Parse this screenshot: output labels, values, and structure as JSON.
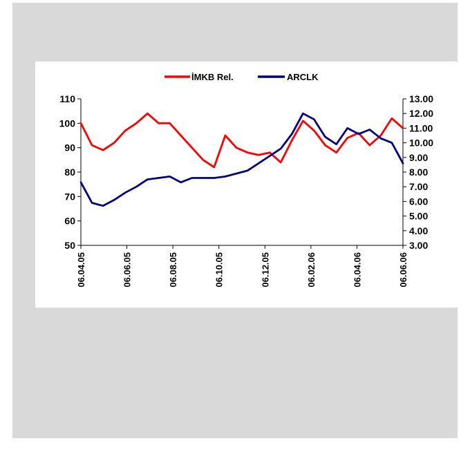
{
  "chart_data": {
    "type": "line",
    "title": "",
    "xlabel": "",
    "ylabel": "",
    "x_ticks": [
      "06.04.05",
      "06.06.05",
      "06.08.05",
      "06.10.05",
      "06.12.05",
      "06.02.06",
      "06.04.06",
      "06.06.06"
    ],
    "y_left": {
      "range": [
        50,
        110
      ],
      "ticks": [
        "50",
        "60",
        "70",
        "80",
        "90",
        "100",
        "110"
      ]
    },
    "y_right": {
      "range": [
        3.0,
        13.0
      ],
      "ticks": [
        "3.00",
        "4.00",
        "5.00",
        "6.00",
        "7.00",
        "8.00",
        "9.00",
        "10.00",
        "11.00",
        "12.00",
        "13.00"
      ]
    },
    "legend": {
      "placement": "top"
    },
    "grid": false,
    "x": [
      "06.04.05",
      "21.04.05",
      "06.05.05",
      "21.05.05",
      "06.06.05",
      "21.06.05",
      "06.07.05",
      "21.07.05",
      "06.08.05",
      "21.08.05",
      "06.09.05",
      "21.09.05",
      "06.10.05",
      "21.10.05",
      "06.11.05",
      "21.11.05",
      "06.12.05",
      "21.12.05",
      "06.01.06",
      "21.01.06",
      "06.02.06",
      "21.02.06",
      "06.03.06",
      "21.03.06",
      "06.04.06",
      "21.04.06",
      "06.05.06",
      "21.05.06",
      "06.06.06",
      "15.06.06"
    ],
    "series": [
      {
        "name": "İMKB Rel.",
        "axis": "left",
        "color": "#ff0000",
        "values": [
          100,
          91,
          89,
          92,
          97,
          100,
          104,
          100,
          100,
          95,
          90,
          85,
          82,
          95,
          90,
          88,
          87,
          88,
          84,
          93,
          101,
          97,
          91,
          88,
          94,
          96,
          91,
          95,
          102,
          98
        ]
      },
      {
        "name": "ARCLK",
        "axis": "right",
        "color": "#000080",
        "values": [
          7.3,
          5.9,
          5.7,
          6.1,
          6.6,
          7.0,
          7.5,
          7.6,
          7.7,
          7.3,
          7.6,
          7.6,
          7.6,
          7.7,
          7.9,
          8.1,
          8.6,
          9.1,
          9.6,
          10.6,
          12.0,
          11.6,
          10.4,
          9.9,
          11.0,
          10.6,
          10.9,
          10.3,
          10.0,
          8.6
        ]
      }
    ]
  }
}
